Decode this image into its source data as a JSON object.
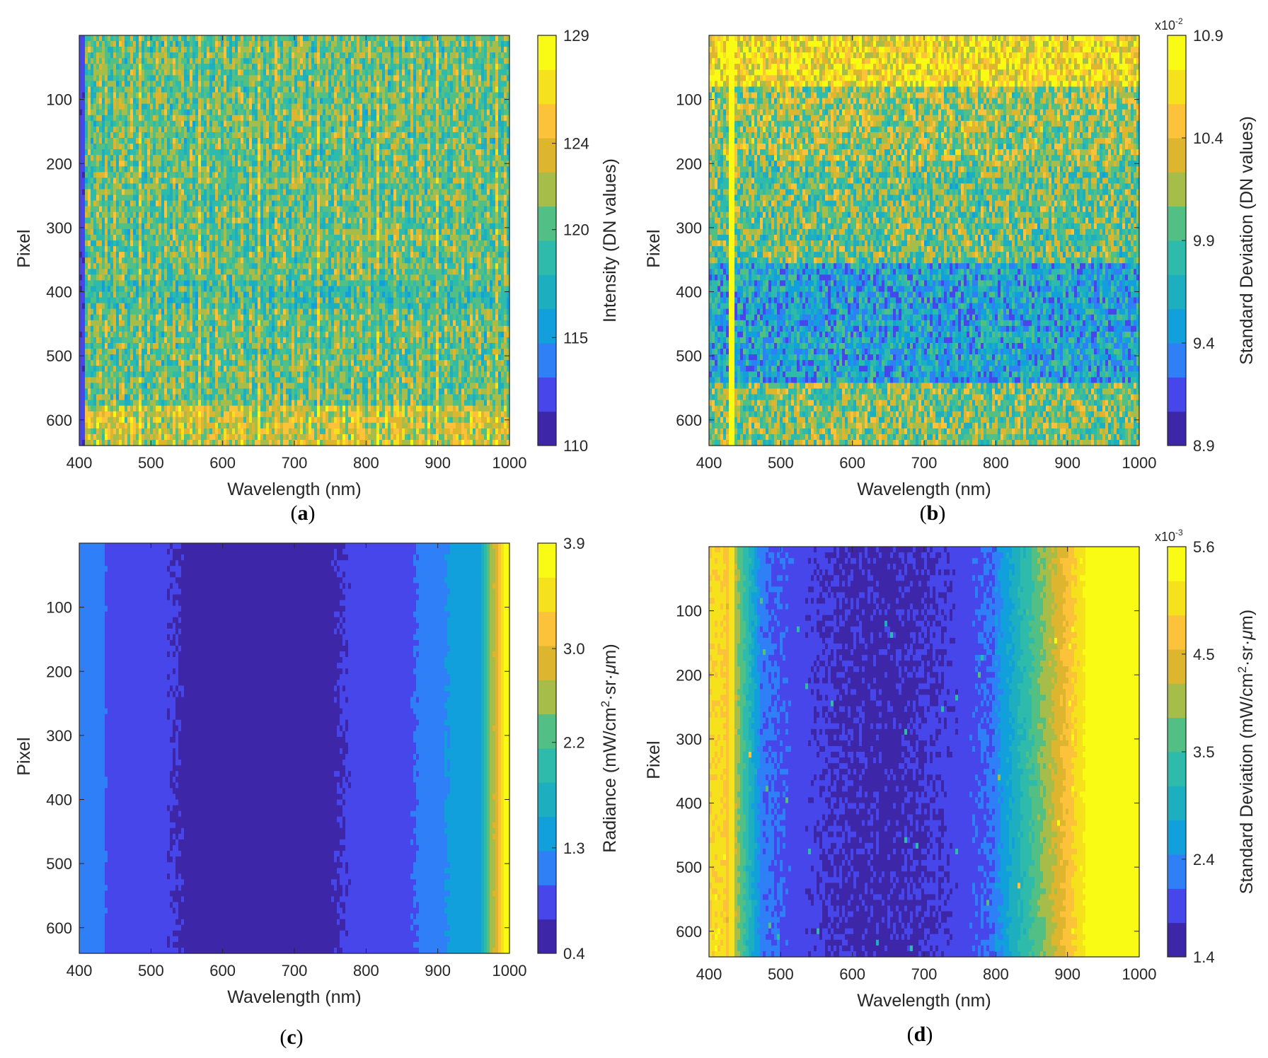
{
  "colormap": [
    "#3e26a8",
    "#4746eb",
    "#2f7ff7",
    "#11a0dc",
    "#1dafbf",
    "#2ebbab",
    "#52bf85",
    "#a6bd4a",
    "#ddb52f",
    "#fbc23a",
    "#f5e21d",
    "#f9fb15"
  ],
  "chart_data": [
    {
      "type": "heatmap",
      "panel_label": "a",
      "xlabel": "Wavelength (nm)",
      "ylabel": "Pixel",
      "xlim": [
        400,
        1000
      ],
      "ylim": [
        640,
        1
      ],
      "x_ticks": [
        "400",
        "500",
        "600",
        "700",
        "800",
        "900",
        "1000"
      ],
      "y_ticks": [
        "100",
        "200",
        "300",
        "400",
        "500",
        "600"
      ],
      "colorbar": {
        "label": "Intensity (DN values)",
        "range": [
          110,
          129
        ],
        "ticks": [
          "129",
          "124",
          "120",
          "115",
          "110"
        ],
        "multiplier": ""
      },
      "pattern": "noisy vertical striping; low intensity at 400 nm edge; higher at bottom rows"
    },
    {
      "type": "heatmap",
      "panel_label": "b",
      "xlabel": "Wavelength (nm)",
      "ylabel": "Pixel",
      "xlim": [
        400,
        1000
      ],
      "ylim": [
        640,
        1
      ],
      "x_ticks": [
        "400",
        "500",
        "600",
        "700",
        "800",
        "900",
        "1000"
      ],
      "y_ticks": [
        "100",
        "200",
        "300",
        "400",
        "500",
        "600"
      ],
      "colorbar": {
        "label": "Standard Deviation (DN values)",
        "range": [
          8.9,
          10.9
        ],
        "ticks": [
          "10.9",
          "10.4",
          "9.9",
          "9.4",
          "8.9"
        ],
        "multiplier": "x10",
        "multiplier_exp": "-2"
      },
      "pattern": "noisy horizontal banding; high at top and bottom rows; bright vertical line near 430 nm"
    },
    {
      "type": "heatmap",
      "panel_label": "c",
      "xlabel": "Wavelength (nm)",
      "ylabel": "Pixel",
      "xlim": [
        400,
        1000
      ],
      "ylim": [
        640,
        1
      ],
      "x_ticks": [
        "400",
        "500",
        "600",
        "700",
        "800",
        "900",
        "1000"
      ],
      "y_ticks": [
        "100",
        "200",
        "300",
        "400",
        "500",
        "600"
      ],
      "colorbar": {
        "label": "Radiance (mW/cm",
        "label_sup": "2",
        "label_tail": "·sr·",
        "label_mu": "μ",
        "label_end": "m)",
        "range": [
          0.4,
          3.9
        ],
        "ticks": [
          "3.9",
          "3.0",
          "2.2",
          "1.3",
          "0.4"
        ],
        "multiplier": ""
      },
      "pattern": "smooth along wavelength; minimum around 600-700 nm; rising steeply above 960 nm"
    },
    {
      "type": "heatmap",
      "panel_label": "d",
      "xlabel": "Wavelength (nm)",
      "ylabel": "Pixel",
      "xlim": [
        400,
        1000
      ],
      "ylim": [
        640,
        1
      ],
      "x_ticks": [
        "400",
        "500",
        "600",
        "700",
        "800",
        "900",
        "1000"
      ],
      "y_ticks": [
        "100",
        "200",
        "300",
        "400",
        "500",
        "600"
      ],
      "colorbar": {
        "label": "Standard Deviation (mW/cm",
        "label_sup": "2",
        "label_tail": "·sr·",
        "label_mu": "μ",
        "label_end": "m)",
        "range": [
          1.4,
          5.6
        ],
        "ticks": [
          "5.6",
          "4.5",
          "3.5",
          "2.4",
          "1.4"
        ],
        "multiplier": "x10",
        "multiplier_exp": "-3"
      },
      "pattern": "high at 400-430 nm edge; minimum around 550-750 nm; saturated above 930 nm; sparse speckle"
    }
  ]
}
